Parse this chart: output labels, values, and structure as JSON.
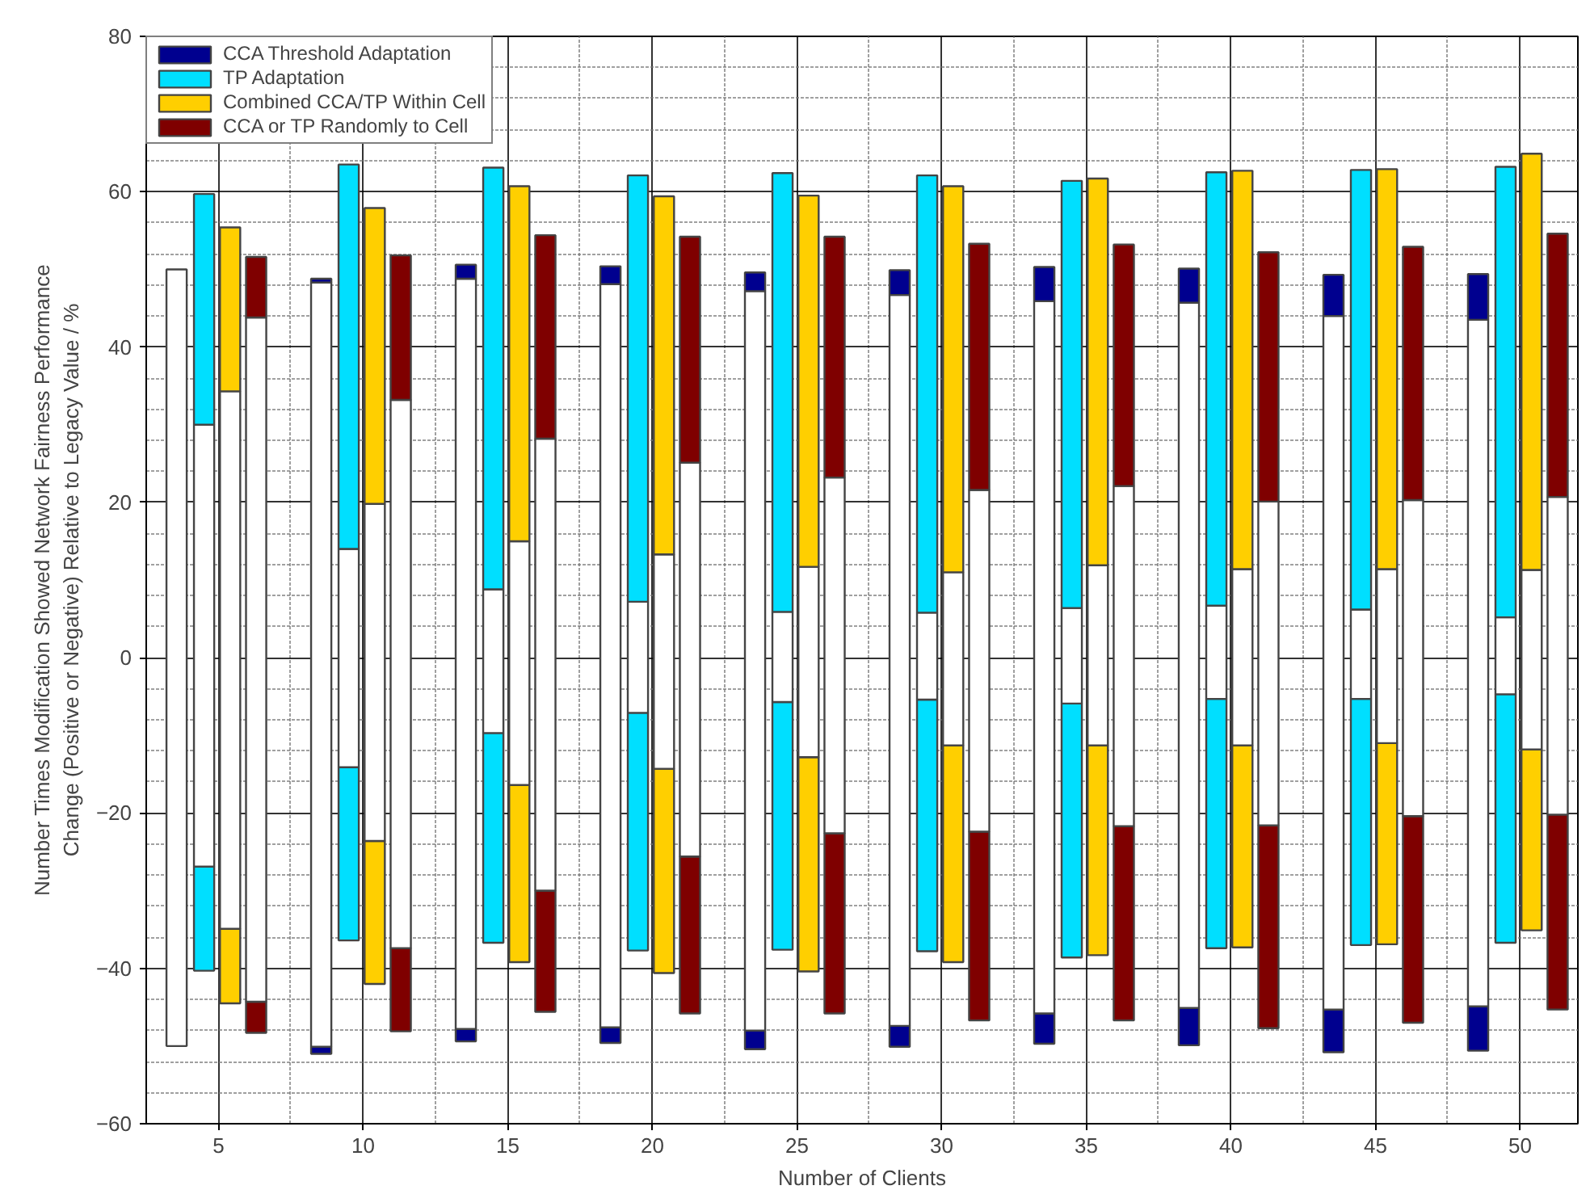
{
  "chart_data": {
    "type": "bar",
    "xlabel": "Number of Clients",
    "ylabel": "Number Times Modification Showed Network Fairness Performance\nChange (Positive or Negative) Relative to Legacy Value / %",
    "xlim": [
      2.5,
      52
    ],
    "xticks": [
      5,
      10,
      15,
      20,
      25,
      30,
      35,
      40,
      45,
      50
    ],
    "ylim": [
      -60,
      80
    ],
    "yticks": [
      -60,
      -40,
      -20,
      0,
      20,
      40,
      60,
      80
    ],
    "grid": true,
    "legend": "top left",
    "series": [
      {
        "color": "#00008f",
        "x": [
          null,
          8.55,
          13.55,
          18.55,
          23.55,
          28.55,
          33.55,
          38.55,
          43.55,
          48.55
        ],
        "base": [
          null,
          -51.0,
          -49.4,
          -49.6,
          -50.4,
          -50.1,
          -49.7,
          -49.9,
          -50.8,
          -50.6
        ],
        "values": [
          null,
          0.9,
          1.6,
          2.0,
          2.4,
          2.7,
          3.9,
          4.8,
          5.5,
          5.7
        ]
      },
      {
        "color": "#ffffff",
        "x": [
          3.55,
          8.55,
          13.55,
          18.55,
          23.55,
          28.55,
          33.55,
          38.55,
          43.55,
          48.55
        ],
        "base": [
          -50,
          -50.1,
          -47.8,
          -47.6,
          -48.0,
          -47.4,
          -45.8,
          -45.1,
          -45.3,
          -44.9
        ],
        "values": [
          100,
          98.4,
          96.6,
          95.7,
          95.2,
          94.1,
          91.7,
          90.8,
          89.3,
          88.4
        ]
      },
      {
        "name": "CCA Threshold Adaptation",
        "color": "#00008f",
        "x": [
          null,
          8.55,
          13.55,
          18.55,
          23.55,
          28.55,
          33.55,
          38.55,
          43.55,
          48.55
        ],
        "base": [
          null,
          48.3,
          48.8,
          48.1,
          47.2,
          46.7,
          45.9,
          45.7,
          44.0,
          43.5
        ],
        "values": [
          null,
          0.5,
          1.8,
          2.3,
          2.4,
          3.2,
          4.4,
          4.4,
          5.3,
          5.9
        ]
      },
      {
        "color": "#00dfff",
        "x": [
          4.5,
          9.5,
          14.5,
          19.5,
          24.5,
          29.5,
          34.5,
          39.5,
          44.5,
          49.5
        ],
        "base": [
          -40.3,
          -36.4,
          -36.7,
          -37.7,
          -37.6,
          -37.8,
          -38.6,
          -37.4,
          -37.0,
          -36.7
        ],
        "values": [
          13.4,
          22.3,
          27.0,
          30.6,
          31.9,
          32.4,
          32.7,
          32.1,
          31.7,
          32.0
        ]
      },
      {
        "color": "#ffffff",
        "x": [
          4.5,
          9.5,
          14.5,
          19.5,
          24.5,
          29.5,
          34.5,
          39.5,
          44.5,
          49.5
        ],
        "base": [
          -26.9,
          -14.1,
          -9.7,
          -7.1,
          -5.7,
          -5.4,
          -5.9,
          -5.3,
          -5.3,
          -4.7
        ],
        "values": [
          56.9,
          28.1,
          18.5,
          14.3,
          11.6,
          11.2,
          12.3,
          12.0,
          11.5,
          9.9
        ]
      },
      {
        "name": "TP Adaptation",
        "color": "#00dfff",
        "x": [
          4.5,
          9.5,
          14.5,
          19.5,
          24.5,
          29.5,
          34.5,
          39.5,
          44.5,
          49.5
        ],
        "base": [
          30.0,
          14.0,
          8.8,
          7.2,
          5.9,
          5.8,
          6.4,
          6.7,
          6.2,
          5.2
        ],
        "values": [
          29.7,
          49.5,
          54.3,
          54.9,
          56.5,
          56.3,
          55.0,
          55.8,
          56.6,
          58.0
        ]
      },
      {
        "color": "#ffcf00",
        "x": [
          5.4,
          10.4,
          15.4,
          20.4,
          25.4,
          30.4,
          35.4,
          40.4,
          45.4,
          50.4
        ],
        "base": [
          -44.5,
          -42.0,
          -39.2,
          -40.6,
          -40.4,
          -39.2,
          -38.3,
          -37.3,
          -36.9,
          -35.1
        ],
        "values": [
          9.6,
          18.4,
          22.8,
          26.3,
          27.6,
          27.9,
          27.0,
          26.0,
          25.9,
          23.3
        ]
      },
      {
        "color": "#ffffff",
        "x": [
          5.4,
          10.4,
          15.4,
          20.4,
          25.4,
          30.4,
          35.4,
          40.4,
          45.4,
          50.4
        ],
        "base": [
          -34.9,
          -23.6,
          -16.4,
          -14.3,
          -12.8,
          -11.3,
          -11.3,
          -11.3,
          -11.0,
          -11.8
        ],
        "values": [
          69.2,
          43.4,
          31.4,
          27.6,
          24.5,
          22.3,
          23.2,
          22.7,
          22.4,
          23.1
        ]
      },
      {
        "name": "Combined CCA/TP Within Cell",
        "color": "#ffcf00",
        "x": [
          5.4,
          10.4,
          15.4,
          20.4,
          25.4,
          30.4,
          35.4,
          40.4,
          45.4,
          50.4
        ],
        "base": [
          34.3,
          19.8,
          15.0,
          13.3,
          11.7,
          11.0,
          11.9,
          11.4,
          11.4,
          11.3
        ],
        "values": [
          21.1,
          38.1,
          45.7,
          46.1,
          47.8,
          49.7,
          49.8,
          51.3,
          51.5,
          53.6
        ]
      },
      {
        "color": "#7f0000",
        "x": [
          6.3,
          11.3,
          16.3,
          21.3,
          26.3,
          31.3,
          36.3,
          41.3,
          46.3,
          51.3
        ],
        "base": [
          -48.3,
          -48.1,
          -45.6,
          -45.8,
          -45.8,
          -46.7,
          -46.7,
          -47.7,
          -47.0,
          -45.3
        ],
        "values": [
          4.0,
          10.7,
          15.6,
          20.2,
          23.2,
          24.3,
          25.0,
          26.1,
          26.6,
          25.1
        ]
      },
      {
        "color": "#ffffff",
        "x": [
          6.3,
          11.3,
          16.3,
          21.3,
          26.3,
          31.3,
          36.3,
          41.3,
          46.3,
          51.3
        ],
        "base": [
          -44.3,
          -37.4,
          -30.0,
          -25.6,
          -22.6,
          -22.4,
          -21.7,
          -21.6,
          -20.4,
          -20.2
        ],
        "values": [
          88.1,
          70.6,
          58.2,
          50.7,
          45.8,
          44.0,
          43.8,
          41.7,
          40.7,
          40.9
        ]
      },
      {
        "name": "CCA or TP Randomly to Cell",
        "color": "#7f0000",
        "x": [
          6.3,
          11.3,
          16.3,
          21.3,
          26.3,
          31.3,
          36.3,
          41.3,
          46.3,
          51.3
        ],
        "base": [
          43.8,
          33.2,
          28.2,
          25.1,
          23.2,
          21.6,
          22.1,
          20.1,
          20.3,
          20.7
        ],
        "values": [
          7.8,
          18.6,
          26.2,
          29.1,
          31.0,
          31.7,
          31.1,
          32.1,
          32.6,
          33.9
        ]
      }
    ]
  }
}
